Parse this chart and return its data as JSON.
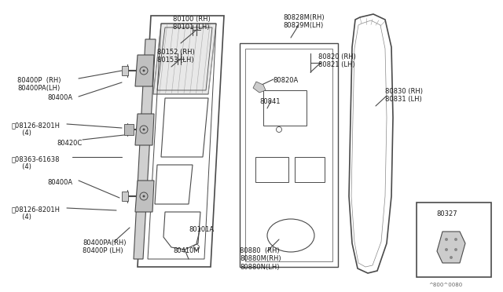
{
  "bg_color": "#ffffff",
  "line_color": "#4a4a4a",
  "text_color": "#1a1a1a",
  "watermark": "^800^0080",
  "labels": {
    "80100": "80100 (RH)\n80101 (LH)",
    "80152": "80152 (RH)\n80153 (LH)",
    "80400P_top": "80400P  (RH)\n80400PA(LH)",
    "80400A_top": "80400A",
    "B_bolt": "Ⓑ08126-8201H\n     (4)",
    "80420C": "80420C",
    "S_bolt1": "Ⓢ08363-61638\n     (4)",
    "80400A_bot": "80400A",
    "S_bolt2": "Ⓢ08126-8201H\n     (4)",
    "80400PA_bot": "80400PA(RH)\n80400P (LH)",
    "80101A": "80101A",
    "80410M": "80410M",
    "80828M": "80828M(RH)\n80829M(LH)",
    "80820": "80820 (RH)\n80821 (LH)",
    "80820A": "80820A",
    "80841": "80841",
    "80830": "80830 (RH)\n80831 (LH)",
    "80880": "80880  (RH)\n80880M(RH)\n80880N(LH)",
    "80327": "80327"
  }
}
